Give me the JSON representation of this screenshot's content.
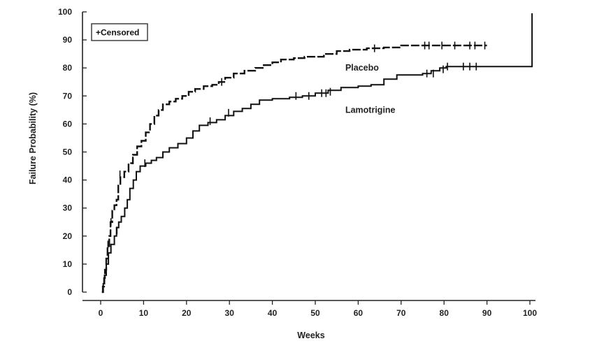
{
  "chart_data": {
    "type": "line",
    "xlabel": "Weeks",
    "ylabel": "Failure Probability (%)",
    "xlim": [
      0,
      100
    ],
    "ylim": [
      0,
      100
    ],
    "xticks": [
      0,
      10,
      20,
      30,
      40,
      50,
      60,
      70,
      80,
      90,
      100
    ],
    "yticks": [
      0,
      10,
      20,
      30,
      40,
      50,
      60,
      70,
      80,
      90,
      100
    ],
    "grid": false,
    "legend": {
      "text": "+Censored",
      "position": "top-left"
    },
    "series": [
      {
        "name": "Placebo",
        "style": "dashed",
        "points": [
          [
            0.3,
            0
          ],
          [
            0.5,
            2
          ],
          [
            0.8,
            5
          ],
          [
            1.0,
            8
          ],
          [
            1.3,
            12
          ],
          [
            1.6,
            16
          ],
          [
            2.0,
            20
          ],
          [
            2.3,
            25
          ],
          [
            2.7,
            29
          ],
          [
            3.2,
            31
          ],
          [
            3.7,
            33
          ],
          [
            4.1,
            38
          ],
          [
            4.6,
            41
          ],
          [
            5.5,
            43
          ],
          [
            6.5,
            46
          ],
          [
            7.5,
            49
          ],
          [
            8.5,
            52
          ],
          [
            9.5,
            54
          ],
          [
            10.5,
            57
          ],
          [
            11.5,
            60
          ],
          [
            12.5,
            63
          ],
          [
            13.5,
            65
          ],
          [
            14.5,
            67
          ],
          [
            16,
            68
          ],
          [
            17.5,
            69
          ],
          [
            19,
            70
          ],
          [
            20.5,
            71.5
          ],
          [
            22,
            72.5
          ],
          [
            24,
            73.5
          ],
          [
            26,
            74
          ],
          [
            27.5,
            75
          ],
          [
            29,
            76.5
          ],
          [
            31,
            78
          ],
          [
            33.5,
            79
          ],
          [
            36,
            80
          ],
          [
            38,
            81
          ],
          [
            40,
            82
          ],
          [
            42,
            83
          ],
          [
            45,
            83.5
          ],
          [
            47.5,
            84
          ],
          [
            52,
            85
          ],
          [
            55,
            86
          ],
          [
            58,
            86.5
          ],
          [
            62,
            87
          ],
          [
            66,
            87.3
          ],
          [
            70,
            88
          ],
          [
            80,
            88
          ],
          [
            90,
            88
          ]
        ],
        "censored": [
          [
            1.7,
            17
          ],
          [
            2.4,
            25
          ],
          [
            4.5,
            42
          ],
          [
            7.5,
            47
          ],
          [
            28.2,
            75
          ],
          [
            63.8,
            87
          ],
          [
            75.5,
            88
          ],
          [
            76.5,
            88
          ],
          [
            79.5,
            88
          ],
          [
            82.5,
            88
          ],
          [
            86,
            88
          ],
          [
            87.2,
            88
          ],
          [
            89.5,
            88
          ]
        ]
      },
      {
        "name": "Lamotrigine",
        "style": "solid",
        "points": [
          [
            0.3,
            0
          ],
          [
            0.6,
            3
          ],
          [
            0.9,
            6
          ],
          [
            1.3,
            10
          ],
          [
            1.8,
            14
          ],
          [
            2.4,
            17
          ],
          [
            3.2,
            20
          ],
          [
            3.7,
            23
          ],
          [
            4.2,
            25
          ],
          [
            4.8,
            27
          ],
          [
            5.6,
            30
          ],
          [
            6.2,
            33
          ],
          [
            6.8,
            37
          ],
          [
            7.6,
            40
          ],
          [
            8.3,
            43
          ],
          [
            9.2,
            45
          ],
          [
            10.5,
            46
          ],
          [
            11.8,
            47
          ],
          [
            13,
            48
          ],
          [
            14.5,
            50
          ],
          [
            16,
            51.5
          ],
          [
            18,
            53
          ],
          [
            20,
            55
          ],
          [
            21.5,
            57.5
          ],
          [
            23,
            59.5
          ],
          [
            25,
            60.5
          ],
          [
            27,
            61.5
          ],
          [
            29,
            63
          ],
          [
            31,
            64.5
          ],
          [
            33,
            65.5
          ],
          [
            35,
            67
          ],
          [
            37,
            68.5
          ],
          [
            40,
            69
          ],
          [
            44,
            69.5
          ],
          [
            47,
            70
          ],
          [
            50,
            71
          ],
          [
            53,
            72
          ],
          [
            56,
            73
          ],
          [
            60,
            73.5
          ],
          [
            63,
            74
          ],
          [
            66,
            76
          ],
          [
            69,
            77.5
          ],
          [
            75,
            78
          ],
          [
            77,
            79
          ],
          [
            79,
            80
          ],
          [
            80.5,
            80.5
          ],
          [
            88,
            80.5
          ],
          [
            100.5,
            80.5
          ],
          [
            100.5,
            99.5
          ]
        ],
        "censored": [
          [
            3.8,
            22
          ],
          [
            10.3,
            46
          ],
          [
            25.5,
            61
          ],
          [
            29.8,
            64
          ],
          [
            45.5,
            70
          ],
          [
            48.5,
            70
          ],
          [
            51.5,
            71
          ],
          [
            52.5,
            71
          ],
          [
            53.5,
            71.5
          ],
          [
            76,
            78
          ],
          [
            77.5,
            78
          ],
          [
            79.8,
            79.5
          ],
          [
            80.8,
            80.5
          ],
          [
            84.5,
            80.5
          ],
          [
            86,
            80.5
          ],
          [
            87.5,
            80.5
          ]
        ]
      }
    ],
    "annotations": [
      {
        "text": "Placebo",
        "x": 57,
        "y": 80
      },
      {
        "text": "Lamotrigine",
        "x": 57,
        "y": 65
      }
    ]
  }
}
